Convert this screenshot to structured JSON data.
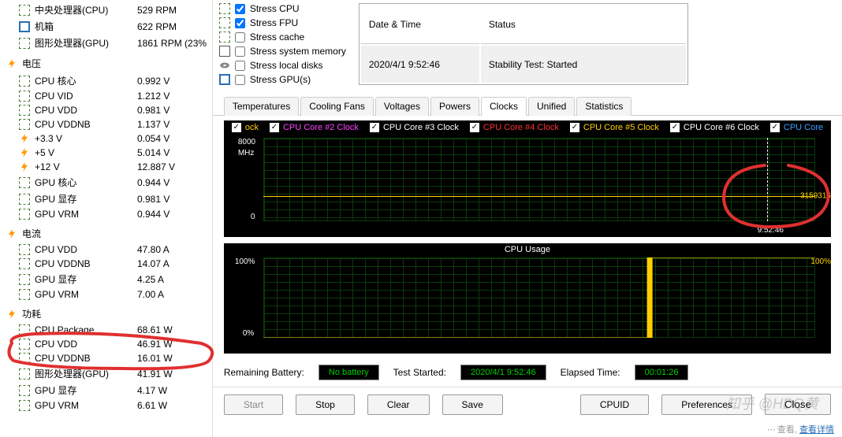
{
  "sidebar": {
    "fans": {
      "items": [
        {
          "icon": "cpu",
          "label": "中央处理器(CPU)",
          "value": "529 RPM"
        },
        {
          "icon": "case",
          "label": "机箱",
          "value": "622 RPM"
        },
        {
          "icon": "gpu",
          "label": "图形处理器(GPU)",
          "value": "1861 RPM  (23%"
        }
      ]
    },
    "voltage": {
      "header": "电压",
      "items": [
        {
          "icon": "cpu",
          "label": "CPU 核心",
          "value": "0.992 V"
        },
        {
          "icon": "cpu",
          "label": "CPU VID",
          "value": "1.212 V"
        },
        {
          "icon": "cpu",
          "label": "CPU VDD",
          "value": "0.981 V"
        },
        {
          "icon": "cpu",
          "label": "CPU VDDNB",
          "value": "1.137 V"
        },
        {
          "icon": "bolt",
          "label": "+3.3 V",
          "value": "0.054 V"
        },
        {
          "icon": "bolt",
          "label": "+5 V",
          "value": "5.014 V"
        },
        {
          "icon": "bolt",
          "label": "+12 V",
          "value": "12.887 V"
        },
        {
          "icon": "gpu",
          "label": "GPU 核心",
          "value": "0.944 V"
        },
        {
          "icon": "gpu",
          "label": "GPU 显存",
          "value": "0.981 V"
        },
        {
          "icon": "gpu",
          "label": "GPU VRM",
          "value": "0.944 V"
        }
      ]
    },
    "current": {
      "header": "电流",
      "items": [
        {
          "icon": "cpu",
          "label": "CPU VDD",
          "value": "47.80 A"
        },
        {
          "icon": "cpu",
          "label": "CPU VDDNB",
          "value": "14.07 A"
        },
        {
          "icon": "gpu",
          "label": "GPU 显存",
          "value": "4.25 A"
        },
        {
          "icon": "gpu",
          "label": "GPU VRM",
          "value": "7.00 A"
        }
      ]
    },
    "power": {
      "header": "功耗",
      "items": [
        {
          "icon": "cpu",
          "label": "CPU Package",
          "value": "68.61 W"
        },
        {
          "icon": "cpu",
          "label": "CPU VDD",
          "value": "46.91 W"
        },
        {
          "icon": "cpu",
          "label": "CPU VDDNB",
          "value": "16.01 W"
        },
        {
          "icon": "gpu",
          "label": "图形处理器(GPU)",
          "value": "41.91 W"
        },
        {
          "icon": "gpu",
          "label": "GPU 显存",
          "value": "4.17 W"
        },
        {
          "icon": "gpu",
          "label": "GPU VRM",
          "value": "6.61 W"
        }
      ]
    }
  },
  "stress": {
    "items": [
      {
        "icon": "cpu",
        "checked": true,
        "label": "Stress CPU"
      },
      {
        "icon": "cpu",
        "checked": true,
        "label": "Stress FPU"
      },
      {
        "icon": "cpu",
        "checked": false,
        "label": "Stress cache"
      },
      {
        "icon": "mem",
        "checked": false,
        "label": "Stress system memory"
      },
      {
        "icon": "disk",
        "checked": false,
        "label": "Stress local disks"
      },
      {
        "icon": "gpu",
        "checked": false,
        "label": "Stress GPU(s)"
      }
    ]
  },
  "log": {
    "col1": "Date & Time",
    "col2": "Status",
    "row1_date": "2020/4/1 9:52:46",
    "row1_status": "Stability Test: Started"
  },
  "tabs": [
    "Temperatures",
    "Cooling Fans",
    "Voltages",
    "Powers",
    "Clocks",
    "Unified",
    "Statistics"
  ],
  "active_tab": "Clocks",
  "legend": [
    {
      "color": "#ffd000",
      "label": "ock",
      "checked": true
    },
    {
      "color": "#ff40ff",
      "label": "CPU Core #2 Clock",
      "checked": true
    },
    {
      "color": "#ffffff",
      "label": "CPU Core #3 Clock",
      "checked": true
    },
    {
      "color": "#ff3030",
      "label": "CPU Core #4 Clock",
      "checked": true
    },
    {
      "color": "#ffd000",
      "label": "CPU Core #5 Clock",
      "checked": true
    },
    {
      "color": "#ffffff",
      "label": "CPU Core #6 Clock",
      "checked": true
    },
    {
      "color": "#40a0ff",
      "label": "CPU Core",
      "checked": true
    }
  ],
  "clock_chart": {
    "y_top": "8000",
    "y_unit": "MHz",
    "y_bot": "0",
    "x_label": "9:52:46",
    "readout": "3159316",
    "ylim": [
      0,
      8000
    ],
    "grid_color": "#0a3a0a",
    "bg": "#000000"
  },
  "usage_chart": {
    "title": "CPU Usage",
    "y_top": "100%",
    "y_bot": "0%",
    "readout": "100%",
    "step_x": 0.7,
    "step_from": 0,
    "step_to": 100,
    "line_color": "#ffd000"
  },
  "status": {
    "battery_label": "Remaining Battery:",
    "battery_val": "No battery",
    "started_label": "Test Started:",
    "started_val": "2020/4/1 9:52:46",
    "elapsed_label": "Elapsed Time:",
    "elapsed_val": "00:01:26"
  },
  "buttons": {
    "start": "Start",
    "stop": "Stop",
    "clear": "Clear",
    "save": "Save",
    "cpuid": "CPUID",
    "prefs": "Preferences",
    "close": "Close"
  },
  "footer": {
    "text": "查看",
    "link": "查看详情"
  },
  "watermark": "知乎 @HDQ黄"
}
